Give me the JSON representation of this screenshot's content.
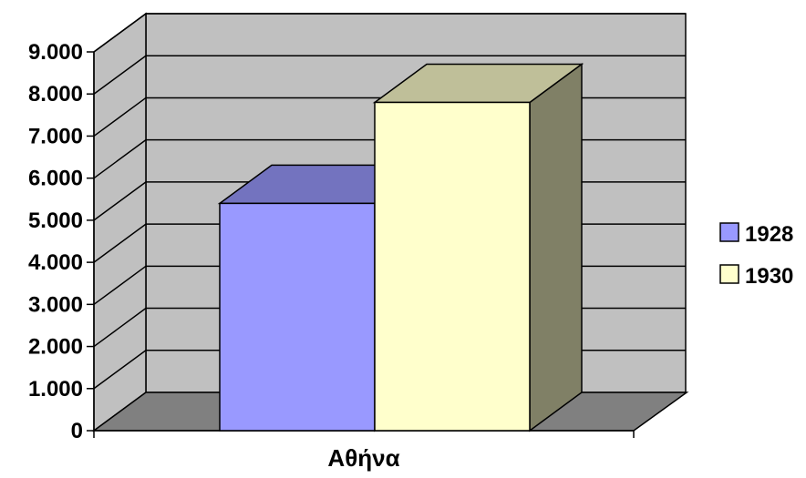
{
  "chart_data": {
    "type": "bar",
    "categories": [
      "Αθήνα"
    ],
    "series": [
      {
        "name": "1928",
        "values": [
          5400
        ],
        "color": "#9999FF"
      },
      {
        "name": "1930",
        "values": [
          7800
        ],
        "color": "#FFFFCC"
      }
    ],
    "ylim": [
      0,
      9000
    ],
    "yticks": [
      "0",
      "1.000",
      "2.000",
      "3.000",
      "4.000",
      "5.000",
      "6.000",
      "7.000",
      "8.000",
      "9.000"
    ],
    "grid": true,
    "legend_position": "right",
    "wall_color": "#C0C0C0",
    "floor_color": "#808080"
  }
}
